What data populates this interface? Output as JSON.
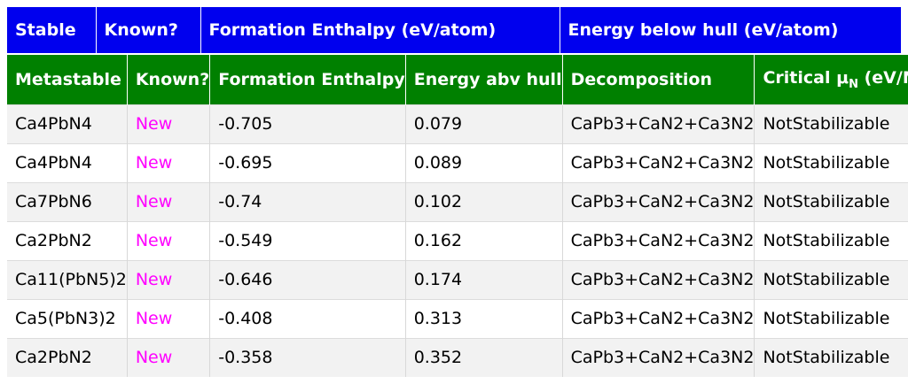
{
  "stable_header": {
    "stable": "Stable",
    "known": "Known?",
    "formation_enthalpy": "Formation Enthalpy (eV/atom)",
    "energy_below_hull": "Energy below hull (eV/atom)"
  },
  "metastable_header": {
    "metastable": "Metastable",
    "known": "Known?",
    "formation_enthalpy": "Formation Enthalpy",
    "energy_abv_hull": "Energy abv hull",
    "decomposition": "Decomposition",
    "critical_prefix": "Critical μ",
    "critical_sub": "N",
    "critical_suffix": " (eV/N)"
  },
  "colors": {
    "stable_header_bg": "#0000ee",
    "metastable_header_bg": "#008000",
    "known_new_text": "#ff00ff"
  },
  "rows": [
    {
      "compound": "Ca4PbN4",
      "known": "New",
      "formation_enthalpy": "-0.705",
      "energy_abv_hull": "0.079",
      "decomposition": "CaPb3+CaN2+Ca3N2",
      "critical": "NotStabilizable"
    },
    {
      "compound": "Ca4PbN4",
      "known": "New",
      "formation_enthalpy": "-0.695",
      "energy_abv_hull": "0.089",
      "decomposition": "CaPb3+CaN2+Ca3N2",
      "critical": "NotStabilizable"
    },
    {
      "compound": "Ca7PbN6",
      "known": "New",
      "formation_enthalpy": "-0.74",
      "energy_abv_hull": "0.102",
      "decomposition": "CaPb3+CaN2+Ca3N2",
      "critical": "NotStabilizable"
    },
    {
      "compound": "Ca2PbN2",
      "known": "New",
      "formation_enthalpy": "-0.549",
      "energy_abv_hull": "0.162",
      "decomposition": "CaPb3+CaN2+Ca3N2",
      "critical": "NotStabilizable"
    },
    {
      "compound": "Ca11(PbN5)2",
      "known": "New",
      "formation_enthalpy": "-0.646",
      "energy_abv_hull": "0.174",
      "decomposition": "CaPb3+CaN2+Ca3N2",
      "critical": "NotStabilizable"
    },
    {
      "compound": "Ca5(PbN3)2",
      "known": "New",
      "formation_enthalpy": "-0.408",
      "energy_abv_hull": "0.313",
      "decomposition": "CaPb3+CaN2+Ca3N2",
      "critical": "NotStabilizable"
    },
    {
      "compound": "Ca2PbN2",
      "known": "New",
      "formation_enthalpy": "-0.358",
      "energy_abv_hull": "0.352",
      "decomposition": "CaPb3+CaN2+Ca3N2",
      "critical": "NotStabilizable"
    }
  ]
}
